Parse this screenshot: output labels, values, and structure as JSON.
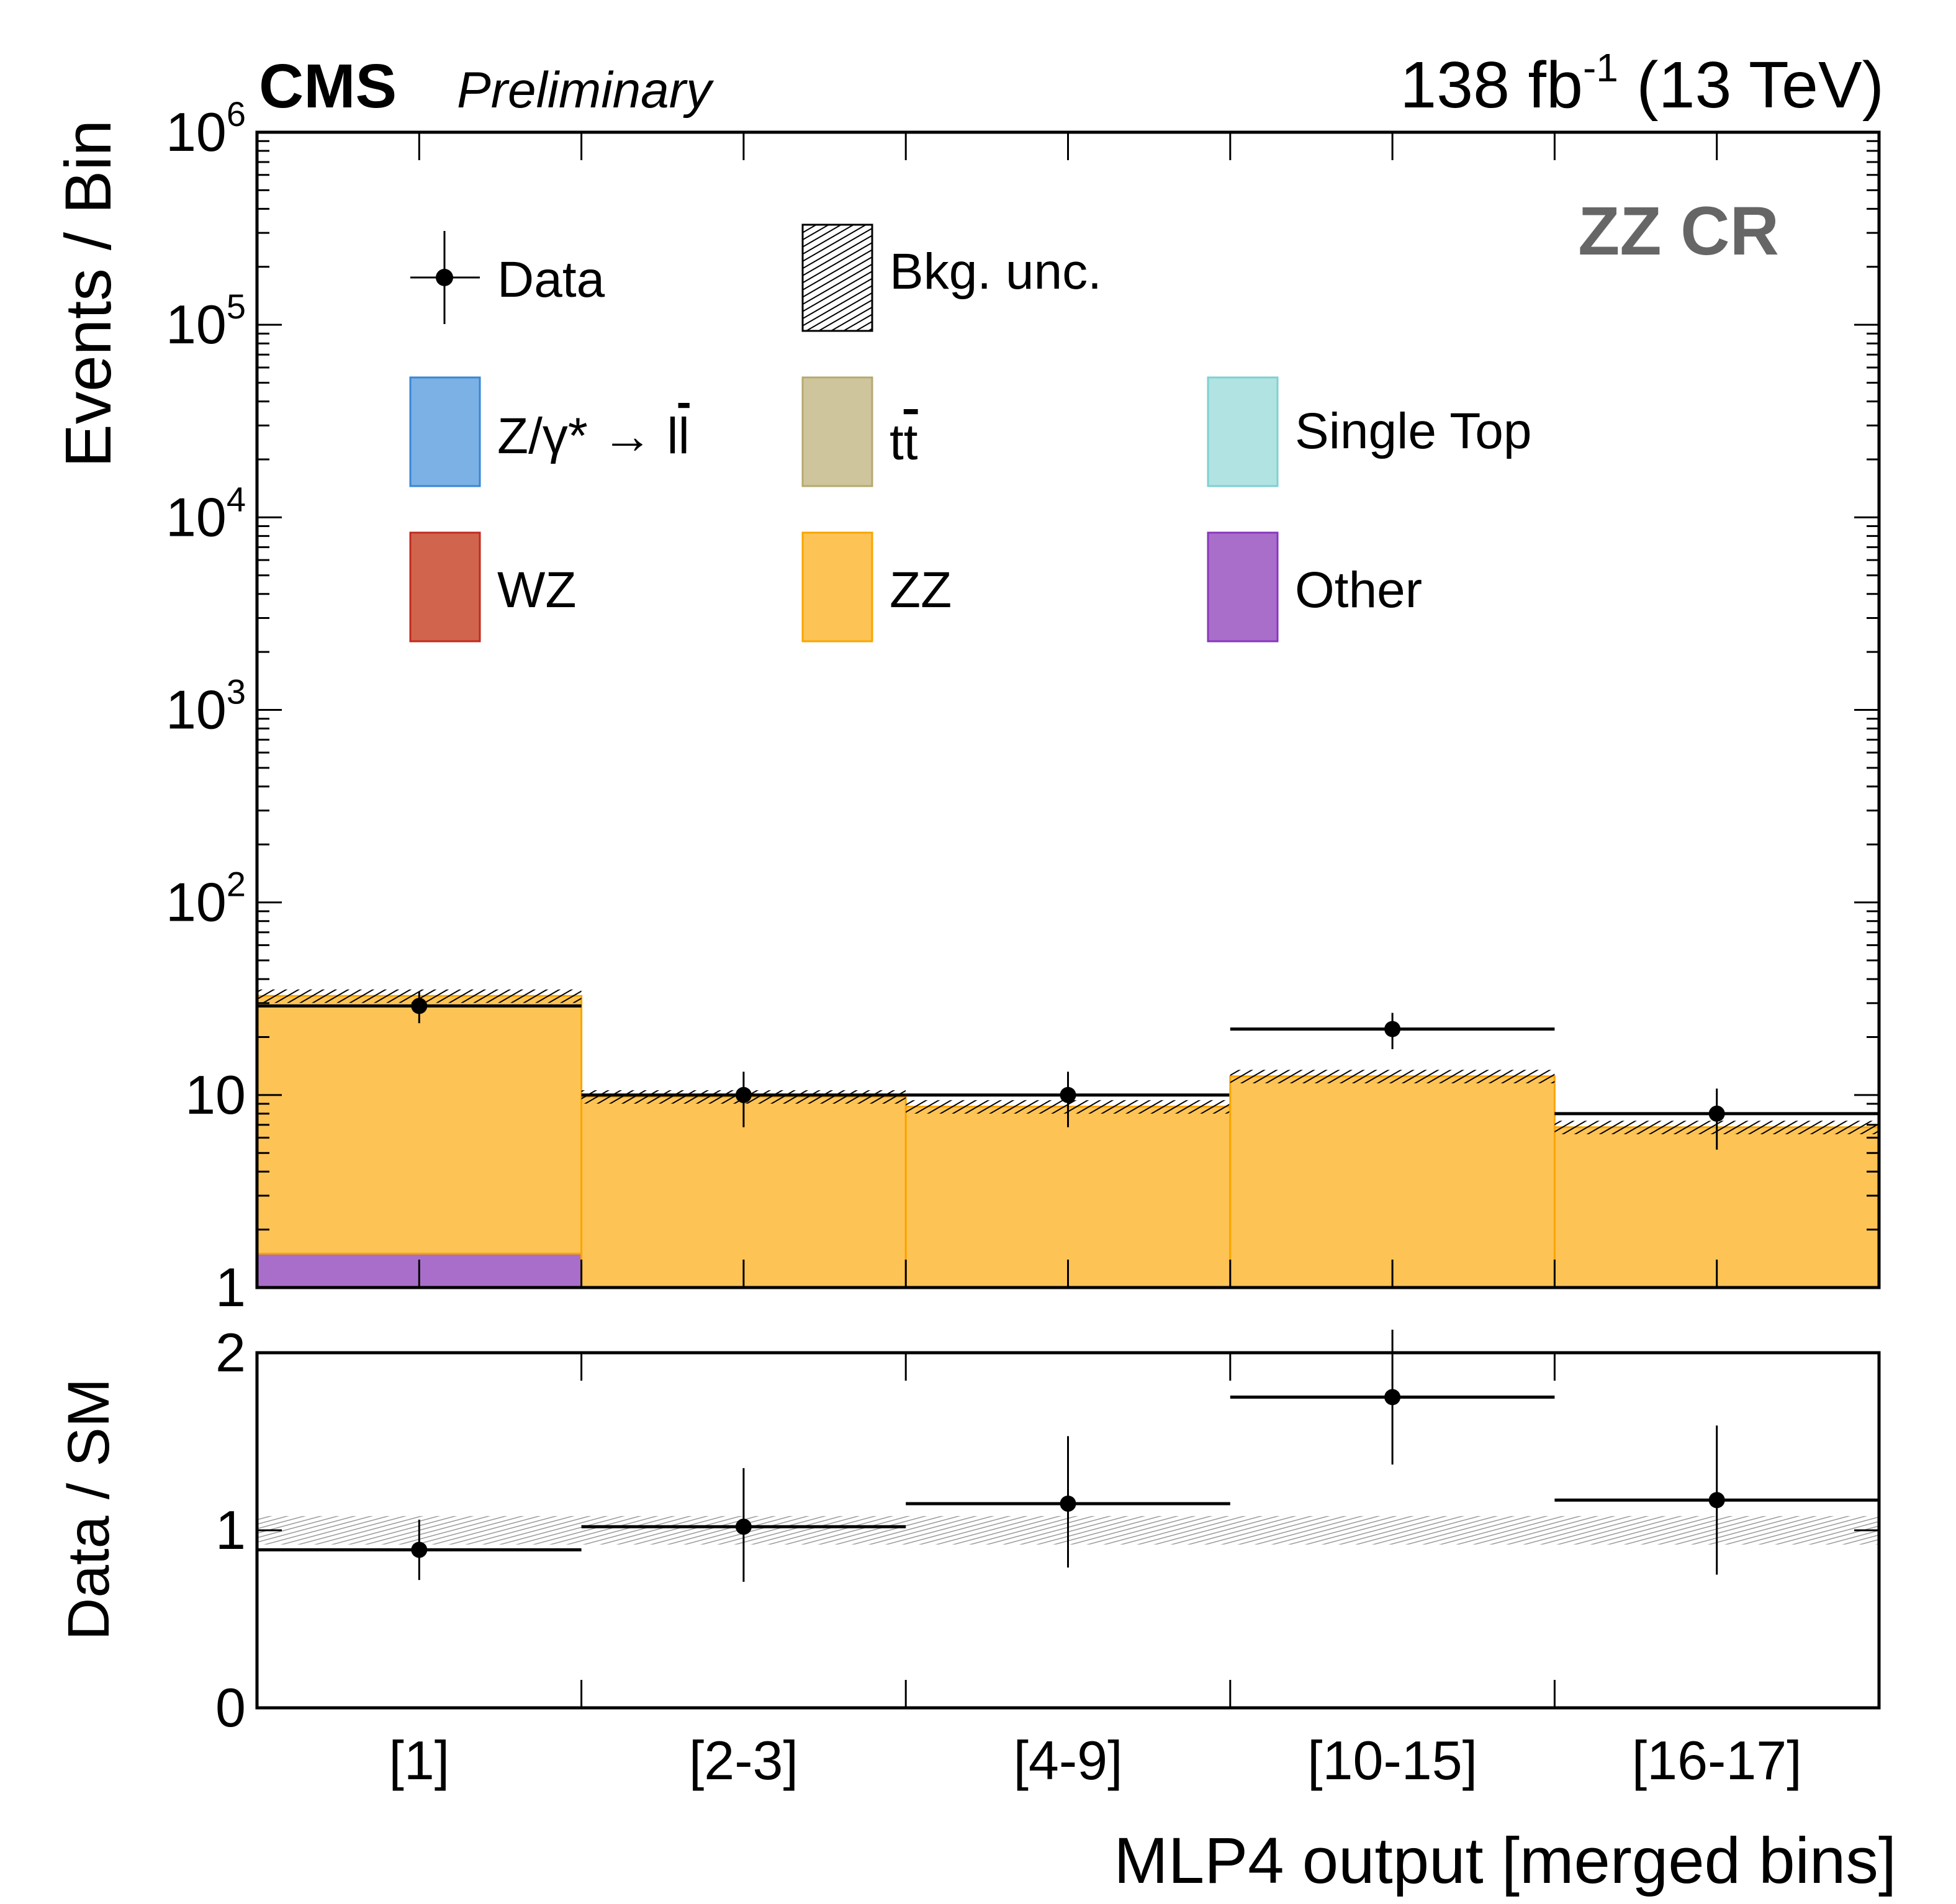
{
  "header": {
    "experiment": "CMS",
    "status": "Preliminary",
    "lumi_prefix": "138 fb",
    "lumi_exp": "-1",
    "lumi_suffix": " (13 TeV)"
  },
  "region_label": "ZZ CR",
  "chart_data": [
    {
      "type": "bar",
      "stacked": true,
      "yscale": "log",
      "ylabel": "Events / Bin",
      "ylim": [
        1,
        1000000
      ],
      "y_tick_labels": [
        {
          "base": "1",
          "exp": ""
        },
        {
          "base": "10",
          "exp": ""
        },
        {
          "base": "10",
          "exp": "2"
        },
        {
          "base": "10",
          "exp": "3"
        },
        {
          "base": "10",
          "exp": "4"
        },
        {
          "base": "10",
          "exp": "5"
        },
        {
          "base": "10",
          "exp": "6"
        }
      ],
      "categories": [
        "[1]",
        "[2-3]",
        "[4-9]",
        "[10-15]",
        "[16-17]"
      ],
      "series": [
        {
          "name": "Other",
          "color": "#a96ec9",
          "edge": "#8a35be",
          "values": [
            1.5,
            0,
            0,
            0,
            0
          ]
        },
        {
          "name": "ZZ",
          "color": "#fec355",
          "edge": "#f9a500",
          "values": [
            31.2,
            9.8,
            8.7,
            12.5,
            6.8
          ]
        },
        {
          "name": "WZ",
          "color": "#d0644c",
          "edge": "#c22a1e",
          "values": [
            0,
            0,
            0,
            0,
            0
          ]
        },
        {
          "name": "Single Top",
          "color": "#b1e3e3",
          "edge": "#7fd0d0",
          "values": [
            0,
            0,
            0,
            0,
            0
          ]
        },
        {
          "name": "ttbar",
          "color": "#cec59c",
          "edge": "#b5a970",
          "values": [
            0,
            0,
            0,
            0,
            0
          ]
        },
        {
          "name": "Z/gamma* -> ll",
          "color": "#7bb1e4",
          "edge": "#3a86d6",
          "values": [
            0,
            0,
            0,
            0,
            0
          ]
        }
      ],
      "bkg_unc_fraction": 0.08,
      "data": {
        "values": [
          29,
          10,
          10,
          22,
          8
        ],
        "err": [
          5.4,
          3.2,
          3.2,
          4.7,
          2.8
        ]
      },
      "legend": {
        "placement": "top",
        "data": "Data",
        "bkg_unc": "Bkg. unc.",
        "dy_prefix": "Z/γ* → l",
        "dy_bar": "l",
        "tt_prefix": "t",
        "tt_bar": "t",
        "single_top": "Single Top",
        "wz": "WZ",
        "zz": "ZZ",
        "other": "Other"
      }
    },
    {
      "type": "scatter",
      "ylabel": "Data / SM",
      "xlabel": "MLP4 output [merged bins]",
      "ylim": [
        0,
        2
      ],
      "y_tick_labels": [
        "0",
        "1",
        "2"
      ],
      "categories": [
        "[1]",
        "[2-3]",
        "[4-9]",
        "[10-15]",
        "[16-17]"
      ],
      "values": [
        0.89,
        1.02,
        1.15,
        1.75,
        1.17
      ],
      "err_low": [
        0.17,
        0.31,
        0.36,
        0.38,
        0.42
      ],
      "err_high": [
        0.17,
        0.33,
        0.38,
        0.38,
        0.42
      ],
      "band": [
        0.92,
        1.08
      ]
    }
  ]
}
